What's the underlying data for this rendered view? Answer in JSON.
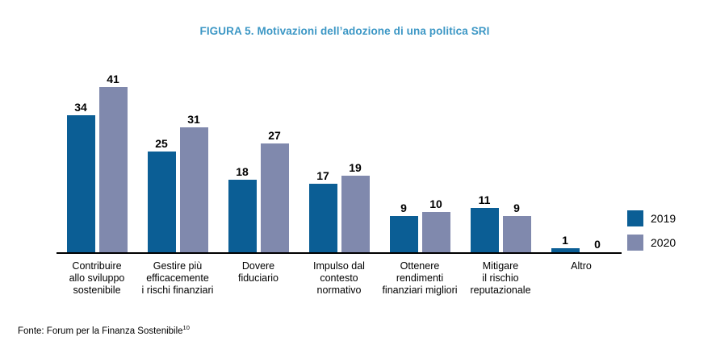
{
  "title": "FIGURA 5. Motivazioni dell’adozione di una politica SRI",
  "colors": {
    "title": "#3C97C5",
    "series_2019": "#0B5E95",
    "series_2020": "#8089AD",
    "axis": "#000000"
  },
  "legend": {
    "items": [
      {
        "label": "2019",
        "color": "#0B5E95"
      },
      {
        "label": "2020",
        "color": "#8089AD"
      }
    ]
  },
  "footer": {
    "text": "Fonte: Forum per la Finanza Sostenibile",
    "footnote_marker": "10"
  },
  "chart_data": {
    "type": "bar",
    "title": "FIGURA 5. Motivazioni dell’adozione di una politica SRI",
    "categories": [
      "Contribuire\nallo sviluppo\nsostenibile",
      "Gestire più\nefficacemente\ni rischi finanziari",
      "Dovere\nfiduciario",
      "Impulso dal\ncontesto\nnormativo",
      "Ottenere\nrendimenti\nfinanziari migliori",
      "Mitigare\nil rischio\nreputazionale",
      "Altro"
    ],
    "series": [
      {
        "name": "2019",
        "color": "#0B5E95",
        "values": [
          34,
          25,
          18,
          17,
          9,
          11,
          1
        ]
      },
      {
        "name": "2020",
        "color": "#8089AD",
        "values": [
          41,
          31,
          27,
          19,
          10,
          9,
          0
        ]
      }
    ],
    "ylim": [
      0,
      41
    ],
    "grid": false,
    "legend_position": "right",
    "value_labels": true,
    "xlabel": "",
    "ylabel": ""
  }
}
